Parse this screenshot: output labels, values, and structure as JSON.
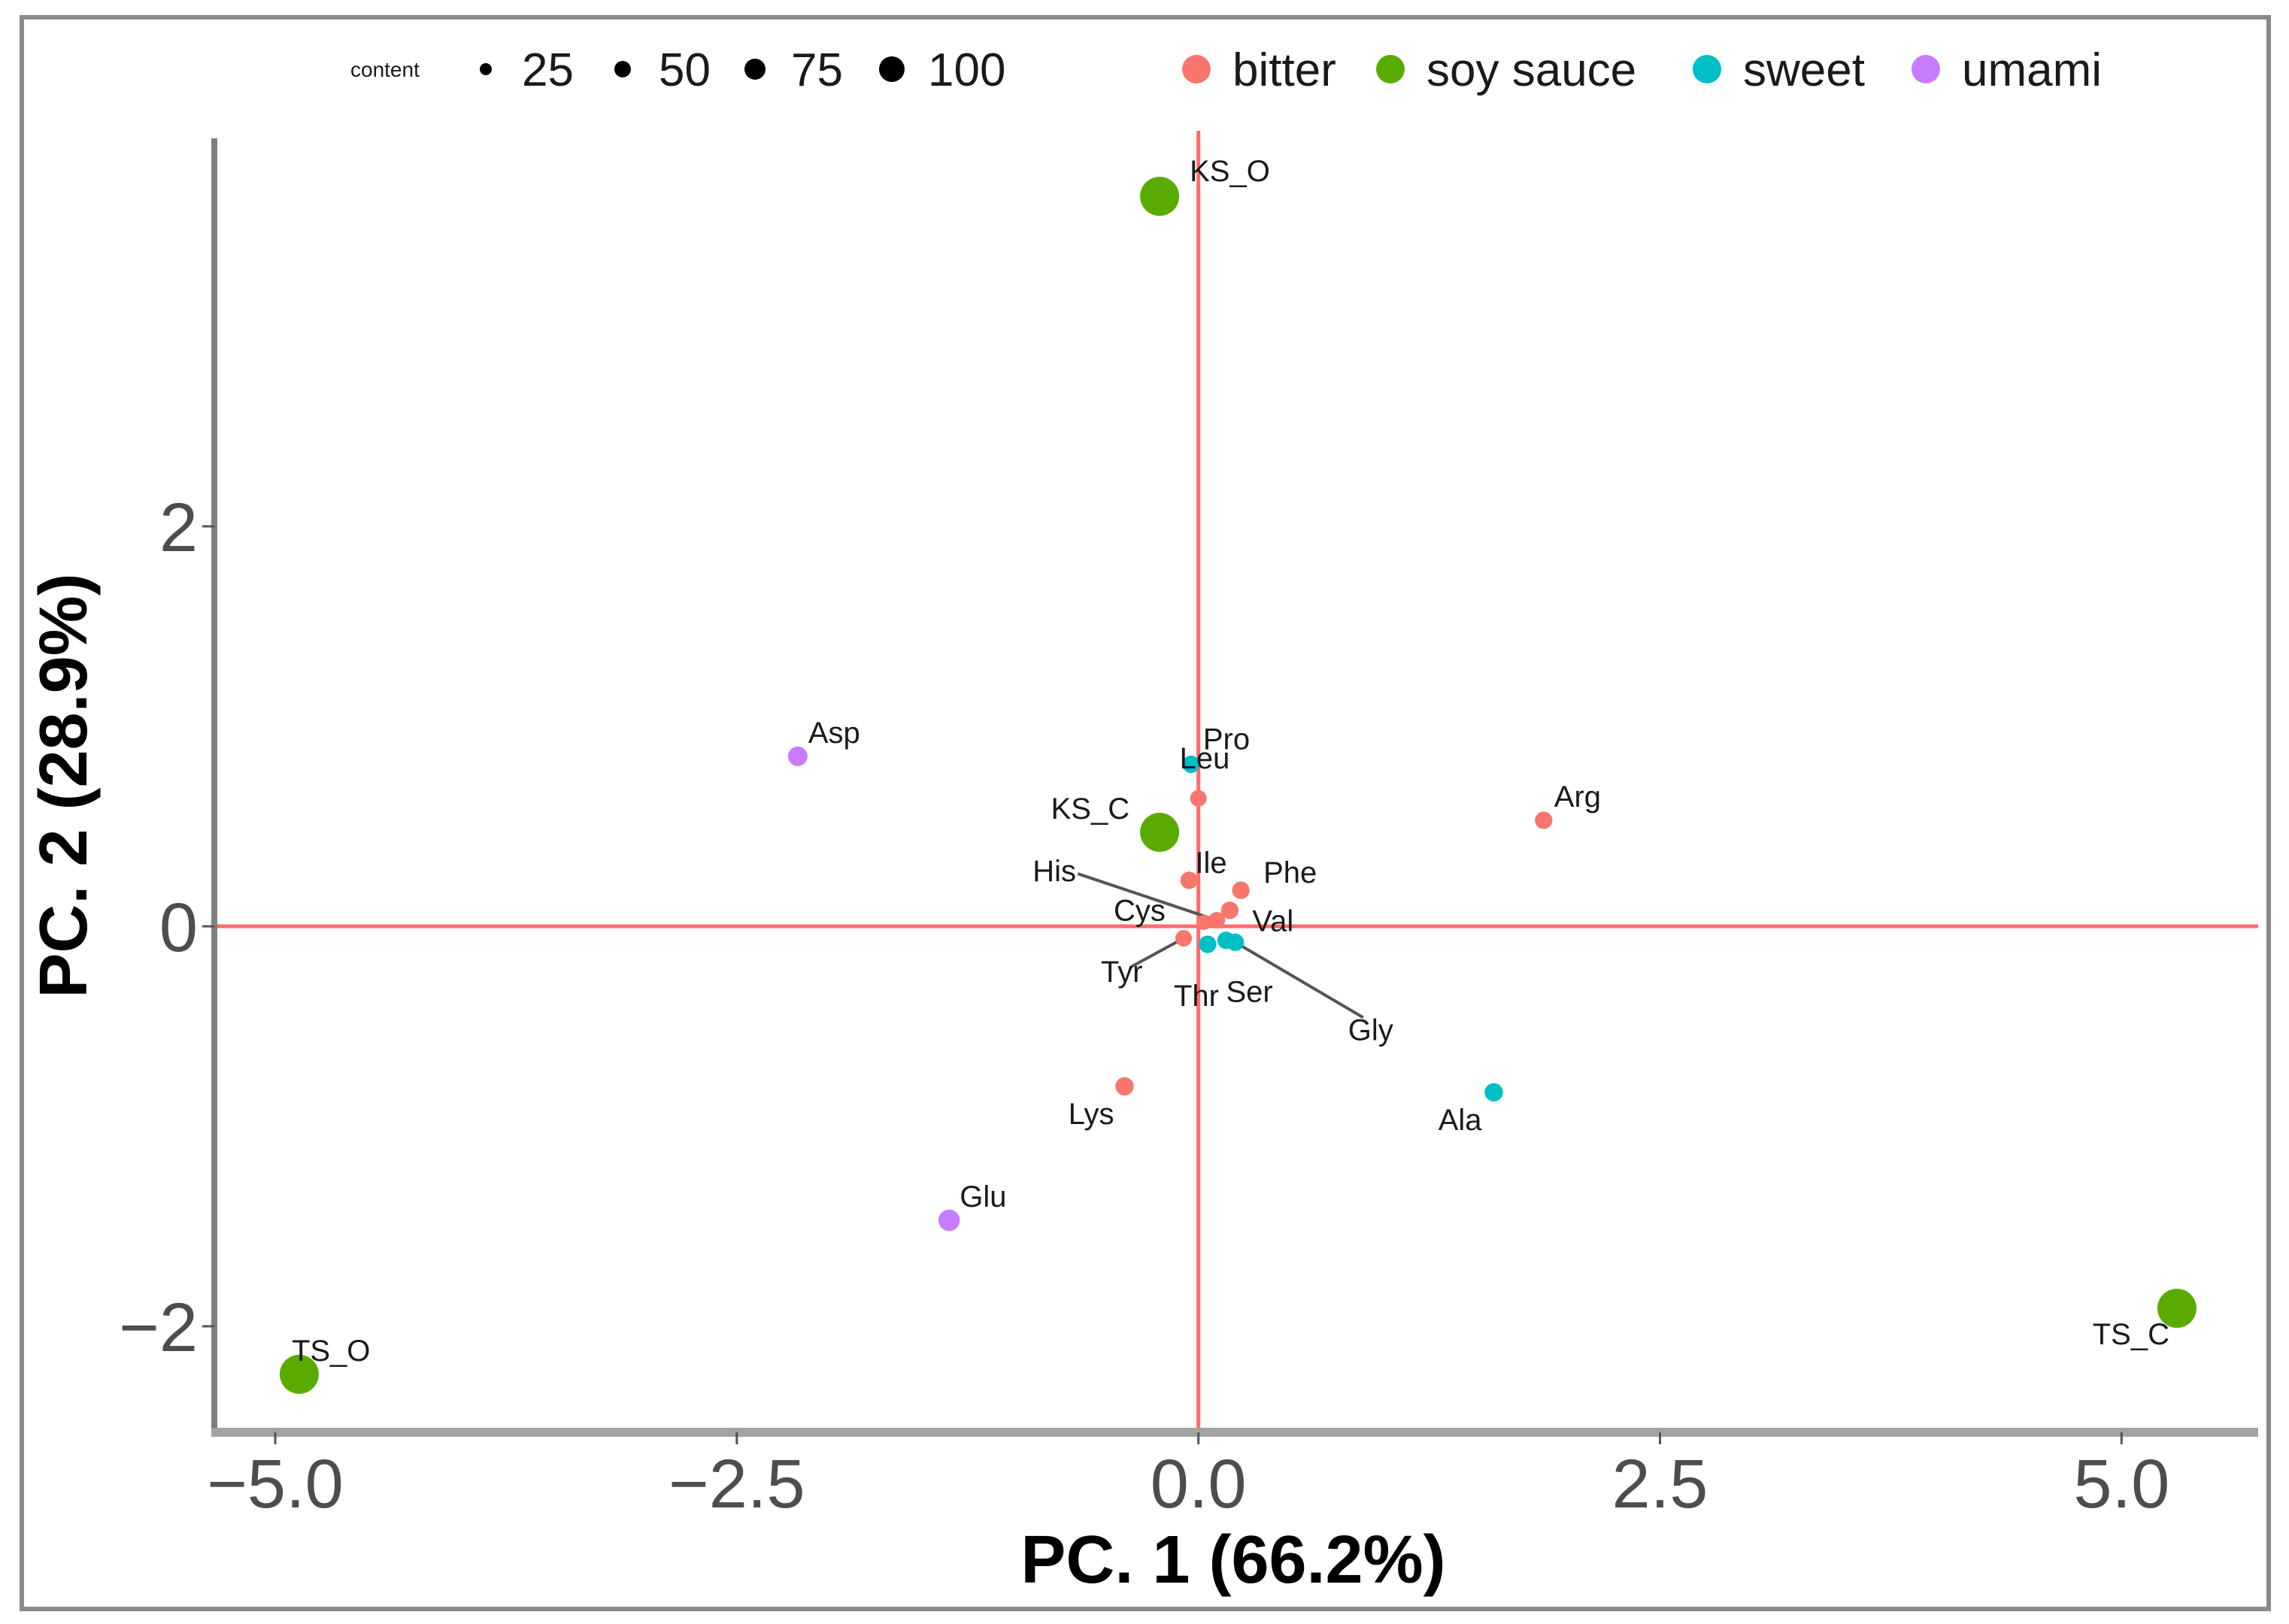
{
  "chart_data": {
    "type": "scatter",
    "title": "",
    "xlabel": "PC. 1 (66.2%)",
    "ylabel": "PC. 2 (28.9%)",
    "xlim": [
      -5.33,
      5.74
    ],
    "ylim": [
      -2.53,
      3.94
    ],
    "xticks": [
      -5.0,
      -2.5,
      0.0,
      2.5,
      5.0
    ],
    "xtick_labels": [
      "−5.0",
      "−2.5",
      "0.0",
      "2.5",
      "5.0"
    ],
    "yticks": [
      -2,
      0,
      2
    ],
    "ytick_labels": [
      "−2",
      "0",
      "2"
    ],
    "grid": false,
    "reference_lines": {
      "x": 0,
      "y": 0,
      "color": "#ff6b6b"
    },
    "legend": {
      "placement": "top",
      "size_title": "content",
      "size_entries": [
        {
          "label": "25",
          "value": 25
        },
        {
          "label": "50",
          "value": 50
        },
        {
          "label": "75",
          "value": 75
        },
        {
          "label": "100",
          "value": 100
        }
      ],
      "color_entries": [
        {
          "label": "bitter",
          "color": "#f8766d"
        },
        {
          "label": "soy sauce",
          "color": "#5aab00"
        },
        {
          "label": "sweet",
          "color": "#00bfc4"
        },
        {
          "label": "umami",
          "color": "#c77cff"
        }
      ]
    },
    "points": [
      {
        "label": "KS_O",
        "group": "soy sauce",
        "x": -0.21,
        "y": 3.65,
        "content": 100
      },
      {
        "label": "KS_C",
        "group": "soy sauce",
        "x": -0.21,
        "y": 0.47,
        "content": 100
      },
      {
        "label": "TS_O",
        "group": "soy sauce",
        "x": -4.87,
        "y": -2.24,
        "content": 100
      },
      {
        "label": "TS_C",
        "group": "soy sauce",
        "x": 5.3,
        "y": -1.91,
        "content": 100
      },
      {
        "label": "Asp",
        "group": "umami",
        "x": -2.17,
        "y": 0.85,
        "content": 25
      },
      {
        "label": "Glu",
        "group": "umami",
        "x": -1.35,
        "y": -1.47,
        "content": 30
      },
      {
        "label": "Pro",
        "group": "sweet",
        "x": -0.04,
        "y": 0.81,
        "content": 20
      },
      {
        "label": "Arg",
        "group": "bitter",
        "x": 1.87,
        "y": 0.53,
        "content": 20
      },
      {
        "label": "Lys",
        "group": "bitter",
        "x": -0.4,
        "y": -0.8,
        "content": 22
      },
      {
        "label": "Ala",
        "group": "sweet",
        "x": 1.6,
        "y": -0.83,
        "content": 22
      },
      {
        "label": "Leu",
        "group": "bitter",
        "x": 0.0,
        "y": 0.64,
        "content": 18
      },
      {
        "label": "Ile",
        "group": "bitter",
        "x": -0.05,
        "y": 0.23,
        "content": 20
      },
      {
        "label": "Phe",
        "group": "bitter",
        "x": 0.23,
        "y": 0.18,
        "content": 20
      },
      {
        "label": "Val",
        "group": "bitter",
        "x": 0.17,
        "y": 0.08,
        "content": 20
      },
      {
        "label": "His",
        "group": "bitter",
        "x": 0.1,
        "y": 0.03,
        "content": 18
      },
      {
        "label": "Cys",
        "group": "bitter",
        "x": 0.03,
        "y": 0.02,
        "content": 15
      },
      {
        "label": "Tyr",
        "group": "bitter",
        "x": -0.08,
        "y": -0.06,
        "content": 18
      },
      {
        "label": "Thr",
        "group": "sweet",
        "x": 0.05,
        "y": -0.09,
        "content": 20
      },
      {
        "label": "Ser",
        "group": "sweet",
        "x": 0.15,
        "y": -0.07,
        "content": 20
      },
      {
        "label": "Gly",
        "group": "sweet",
        "x": 0.2,
        "y": -0.08,
        "content": 20
      }
    ]
  }
}
